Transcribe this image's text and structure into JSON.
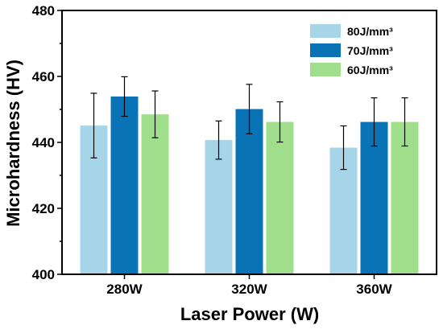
{
  "chart_data": {
    "type": "bar",
    "xlabel": "Laser Power (W)",
    "ylabel": "Microhardness (HV)",
    "categories": [
      "280W",
      "320W",
      "360W"
    ],
    "ylim": [
      400,
      480
    ],
    "yticks": [
      400,
      420,
      440,
      460,
      480
    ],
    "grid": false,
    "legend_position": "top-right",
    "series": [
      {
        "name": "80J/mm³",
        "color": "#a6d5e7",
        "values": [
          445.1,
          440.7,
          438.4
        ],
        "errors": [
          9.8,
          5.8,
          6.6
        ]
      },
      {
        "name": "70J/mm³",
        "color": "#0a73b6",
        "values": [
          453.9,
          450.1,
          446.2
        ],
        "errors": [
          6.0,
          7.5,
          7.3
        ]
      },
      {
        "name": "60J/mm³",
        "color": "#9fdf8b",
        "values": [
          448.5,
          446.2,
          446.2
        ],
        "errors": [
          7.1,
          6.1,
          7.3
        ]
      }
    ]
  }
}
